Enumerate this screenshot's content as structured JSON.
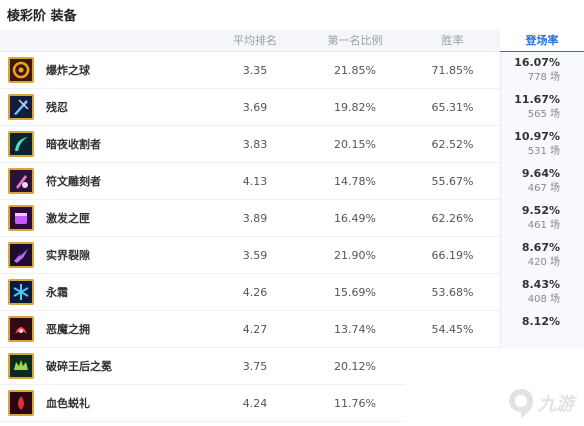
{
  "page": {
    "title": "棱彩阶 装备"
  },
  "columns": {
    "avg_rank": "平均排名",
    "first_rate": "第一名比例",
    "win_rate": "胜率",
    "pick_rate": "登场率"
  },
  "rows": [
    {
      "name": "爆炸之球",
      "icon": "explosive-orb-icon",
      "avg": "3.35",
      "first": "21.85%",
      "win": "71.85%",
      "pick": "16.07%",
      "count": "778 场",
      "bg": "#3a1a08",
      "accent": "#f7a21b"
    },
    {
      "name": "残忍",
      "icon": "cruelty-icon",
      "avg": "3.69",
      "first": "19.82%",
      "win": "65.31%",
      "pick": "11.67%",
      "count": "565 场",
      "bg": "#141c3a",
      "accent": "#6fc6ff"
    },
    {
      "name": "暗夜收割者",
      "icon": "night-harvester-icon",
      "avg": "3.83",
      "first": "20.15%",
      "win": "62.52%",
      "pick": "10.97%",
      "count": "531 场",
      "bg": "#0b2330",
      "accent": "#47e0c9"
    },
    {
      "name": "符文雕刻者",
      "icon": "runecarver-icon",
      "avg": "4.13",
      "first": "14.78%",
      "win": "55.67%",
      "pick": "9.64%",
      "count": "467 场",
      "bg": "#2a1238",
      "accent": "#e07bd8"
    },
    {
      "name": "激发之匣",
      "icon": "kindling-box-icon",
      "avg": "3.89",
      "first": "16.49%",
      "win": "62.26%",
      "pick": "9.52%",
      "count": "461 场",
      "bg": "#2a0a38",
      "accent": "#c45cff"
    },
    {
      "name": "实界裂隙",
      "icon": "reality-fracture-icon",
      "avg": "3.59",
      "first": "21.90%",
      "win": "66.19%",
      "pick": "8.67%",
      "count": "420 场",
      "bg": "#1c0c30",
      "accent": "#b66cff"
    },
    {
      "name": "永霜",
      "icon": "everfrost-icon",
      "avg": "4.26",
      "first": "15.69%",
      "win": "53.68%",
      "pick": "8.43%",
      "count": "408 场",
      "bg": "#0a1a3a",
      "accent": "#4fc8ff"
    },
    {
      "name": "恶魔之拥",
      "icon": "demonic-embrace-icon",
      "avg": "4.27",
      "first": "13.74%",
      "win": "54.45%",
      "pick": "8.12%",
      "count": "",
      "bg": "#2e0a12",
      "accent": "#ff4a5a"
    },
    {
      "name": "破碎王后之冕",
      "icon": "shattered-queen-crown-icon",
      "avg": "3.75",
      "first": "20.12%",
      "win": "",
      "pick": "",
      "count": "",
      "bg": "#0e2a1a",
      "accent": "#9bd84a"
    },
    {
      "name": "血色蜕礼",
      "icon": "bloodsong-icon",
      "avg": "4.24",
      "first": "11.76%",
      "win": "",
      "pick": "",
      "count": "",
      "bg": "#2a0810",
      "accent": "#e03040"
    }
  ],
  "watermark": {
    "text": "九游",
    "icon": "9game-logo-icon"
  }
}
